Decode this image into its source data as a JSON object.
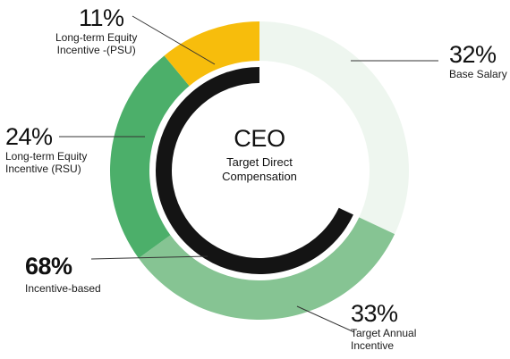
{
  "center": {
    "title": "CEO",
    "subtitle_line1": "Target Direct",
    "subtitle_line2": "Compensation"
  },
  "colors": {
    "base_salary": "#eef6ef",
    "target_annual": "#86c493",
    "rsu": "#4caf6a",
    "psu": "#f7bd0c",
    "incentive_ring": "#141414",
    "leader": "#333333"
  },
  "labels": {
    "psu": {
      "pct": "11%",
      "line1": "Long-term Equity",
      "line2": "Incentive -(PSU)"
    },
    "base": {
      "pct": "32%",
      "line1": "Base Salary"
    },
    "rsu": {
      "pct": "24%",
      "line1": "Long-term Equity",
      "line2": "Incentive (RSU)"
    },
    "incentive": {
      "pct": "68%",
      "line1": "Incentive-based"
    },
    "annual": {
      "pct": "33%",
      "line1": "Target Annual",
      "line2": "Incentive"
    }
  },
  "chart_data": {
    "type": "pie",
    "variant": "donut",
    "title": "CEO",
    "subtitle": "Target Direct Compensation",
    "slices": [
      {
        "label": "Base Salary",
        "value": 32,
        "color": "#eef6ef"
      },
      {
        "label": "Target Annual Incentive",
        "value": 33,
        "color": "#86c493"
      },
      {
        "label": "Long-term Equity Incentive (RSU)",
        "value": 24,
        "color": "#4caf6a"
      },
      {
        "label": "Long-term Equity Incentive -(PSU)",
        "value": 11,
        "color": "#f7bd0c"
      }
    ],
    "summary": {
      "label": "Incentive-based",
      "value": 68
    }
  }
}
